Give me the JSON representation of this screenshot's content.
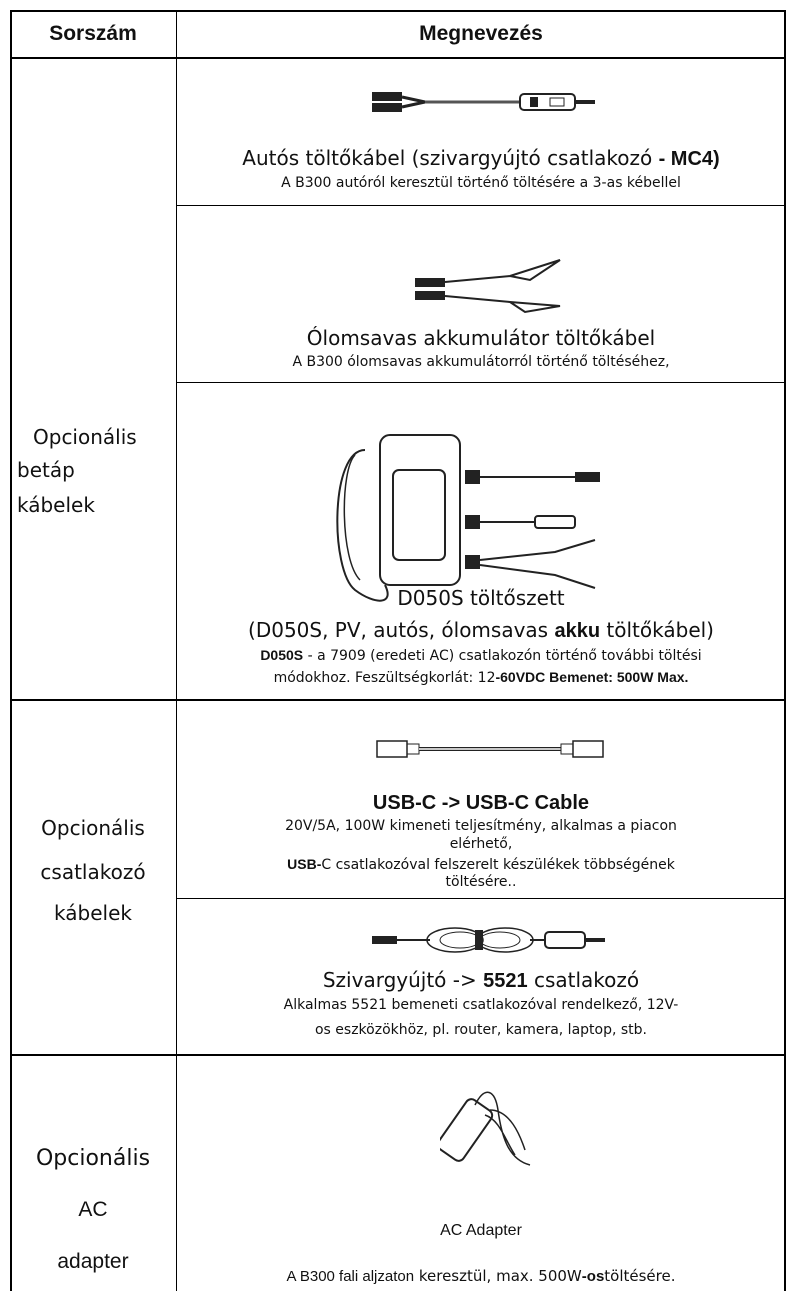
{
  "header": {
    "col1": "Sorszám",
    "col2": "Megnevezés"
  },
  "groups": [
    {
      "label": [
        "Opcionális",
        "betáp",
        "kábelek"
      ],
      "items": [
        {
          "title": [
            "Autós töltőkábel (szivargyújtó csatlakozó ",
            "- MC4)"
          ],
          "desc": [
            [
              "A B300 autóról keresztül történő töltésére a 3-as kébellel"
            ]
          ]
        },
        {
          "title": [
            "Ólomsavas akkumulátor töltőkábel"
          ],
          "desc": [
            [
              "A B300 ólomsavas akkumulátorról történő töltéséhez,"
            ]
          ]
        },
        {
          "title": [
            "D050S töltőszett"
          ],
          "subtitle": [
            "(D050S, PV, autós, ólomsavas ",
            "akku",
            " töltőkábel)"
          ],
          "desc": [
            [
              "D050S",
              " - a 7909 (eredeti AC) csatlakozón történő további töltési"
            ],
            [
              "módokhoz. Feszültségkorlát: 12",
              "-60VDC Bemenet: 500W Max."
            ]
          ]
        }
      ]
    },
    {
      "label": [
        "Opcionális",
        "csatlakozó",
        "kábelek"
      ],
      "items": [
        {
          "title": [
            "USB-C -> USB-C Cable"
          ],
          "desc": [
            [
              "20V/5A, 100W kimeneti teljesítmény, alkalmas a piacon"
            ],
            [
              "elérhető,"
            ],
            [
              "USB-",
              "C csatlakozóval felszerelt készülékek többségének"
            ],
            [
              "töltésére.."
            ]
          ]
        },
        {
          "title": [
            "Szivargyújtó -> ",
            "5521",
            " csatlakozó"
          ],
          "desc": [
            [
              "Alkalmas 5521 bemeneti csatlakozóval rendelkező, 12V-"
            ],
            [
              "os eszközökhöz, pl. router, kamera, laptop, stb."
            ]
          ]
        }
      ]
    },
    {
      "label": [
        "Opcionális",
        "AC",
        "adapter"
      ],
      "items": [
        {
          "title": [
            "AC Adapter"
          ],
          "desc": [
            [
              "A B300 fali aljzaton",
              " keresztül, max. 500W",
              "-os",
              "töltésére."
            ]
          ]
        }
      ]
    }
  ]
}
